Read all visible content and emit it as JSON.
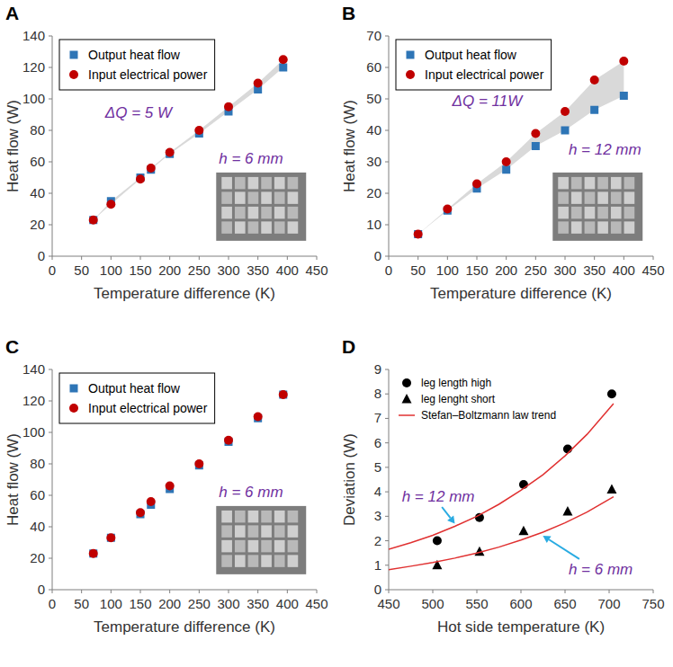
{
  "chart_data": [
    {
      "type": "scatter",
      "title": "A",
      "x_label": "Temperature difference (K)",
      "y_label": "Heat flow (W)",
      "x": [
        70,
        100,
        150,
        168,
        200,
        250,
        300,
        350,
        393
      ],
      "series": [
        {
          "name": "Output heat flow",
          "color": "#2e75b6",
          "marker": "square",
          "values": [
            23,
            35,
            50,
            55,
            65,
            78,
            92,
            106,
            120
          ]
        },
        {
          "name": "Input electrical power",
          "color": "#c00000",
          "marker": "circle",
          "values": [
            23,
            33,
            49,
            56,
            66,
            80,
            95,
            110,
            125
          ]
        }
      ],
      "xlim": [
        0,
        450
      ],
      "xticks": [
        0,
        50,
        100,
        150,
        200,
        250,
        300,
        350,
        400,
        450
      ],
      "ylim": [
        0,
        140
      ],
      "yticks": [
        0,
        20,
        40,
        60,
        80,
        100,
        120,
        140
      ],
      "grid": false,
      "legend": "upper left",
      "annotations": [
        "ΔQ = 5 W",
        "h = 6 mm"
      ]
    },
    {
      "type": "scatter",
      "title": "B",
      "x_label": "Temperature difference (K)",
      "y_label": "Heat flow (W)",
      "x": [
        50,
        100,
        150,
        200,
        250,
        300,
        350,
        400
      ],
      "series": [
        {
          "name": "Output heat flow",
          "color": "#2e75b6",
          "marker": "square",
          "values": [
            7,
            14.5,
            21.5,
            27.5,
            35,
            40,
            46.5,
            51
          ]
        },
        {
          "name": "Input electrical power",
          "color": "#c00000",
          "marker": "circle",
          "values": [
            7,
            15,
            23,
            30,
            39,
            46,
            56,
            62
          ]
        }
      ],
      "xlim": [
        0,
        450
      ],
      "xticks": [
        0,
        50,
        100,
        150,
        200,
        250,
        300,
        350,
        400,
        450
      ],
      "ylim": [
        0,
        70
      ],
      "yticks": [
        0,
        10,
        20,
        30,
        40,
        50,
        60,
        70
      ],
      "grid": false,
      "legend": "upper left",
      "annotations": [
        "ΔQ = 11W",
        "h = 12 mm"
      ]
    },
    {
      "type": "scatter",
      "title": "C",
      "x_label": "Temperature difference (K)",
      "y_label": "Heat flow (W)",
      "x": [
        70,
        100,
        150,
        168,
        200,
        250,
        300,
        350,
        393
      ],
      "series": [
        {
          "name": "Output heat flow",
          "color": "#2e75b6",
          "marker": "square",
          "values": [
            23,
            33,
            48,
            54,
            64,
            79,
            94,
            109,
            124
          ]
        },
        {
          "name": "Input electrical power",
          "color": "#c00000",
          "marker": "circle",
          "values": [
            23,
            33,
            49,
            56,
            66,
            80,
            95,
            110,
            124
          ]
        }
      ],
      "xlim": [
        0,
        450
      ],
      "xticks": [
        0,
        50,
        100,
        150,
        200,
        250,
        300,
        350,
        400,
        450
      ],
      "ylim": [
        0,
        140
      ],
      "yticks": [
        0,
        20,
        40,
        60,
        80,
        100,
        120,
        140
      ],
      "grid": false,
      "legend": "upper left",
      "annotations": [
        "h = 6 mm"
      ]
    },
    {
      "type": "scatter",
      "title": "D",
      "x_label": "Hot side temperature (K)",
      "y_label": "Deviation (W)",
      "series": [
        {
          "name": "leg length high",
          "color": "#000000",
          "marker": "circle",
          "type": "scatter",
          "x": [
            505,
            553,
            603,
            653,
            703
          ],
          "values": [
            2.0,
            2.95,
            4.3,
            5.75,
            8.0
          ]
        },
        {
          "name": "leg lenght short",
          "color": "#000000",
          "marker": "triangle",
          "type": "scatter",
          "x": [
            505,
            553,
            603,
            653,
            703
          ],
          "values": [
            1.0,
            1.55,
            2.4,
            3.2,
            4.1
          ]
        },
        {
          "name": "Stefan–Boltzmann law trend",
          "color": "#e03030",
          "marker": "none",
          "type": "line",
          "x": [
            450,
            475,
            500,
            525,
            550,
            575,
            600,
            625,
            650,
            675,
            705
          ],
          "values": [
            1.65,
            1.92,
            2.22,
            2.59,
            3.0,
            3.49,
            4.06,
            4.7,
            5.47,
            6.35,
            7.6
          ]
        },
        {
          "color": "#e03030",
          "marker": "none",
          "type": "line",
          "x": [
            450,
            475,
            500,
            525,
            550,
            575,
            600,
            625,
            650,
            675,
            705
          ],
          "values": [
            0.82,
            0.96,
            1.11,
            1.29,
            1.5,
            1.74,
            2.03,
            2.35,
            2.73,
            3.17,
            3.8
          ]
        }
      ],
      "xlim": [
        450,
        750
      ],
      "xticks": [
        450,
        500,
        550,
        600,
        650,
        700,
        750
      ],
      "ylim": [
        0,
        9
      ],
      "yticks": [
        0,
        1,
        2,
        3,
        4,
        5,
        6,
        7,
        8,
        9
      ],
      "grid": false,
      "legend": "upper left",
      "annotations": [
        "h = 12 mm",
        "h = 6 mm"
      ]
    }
  ]
}
